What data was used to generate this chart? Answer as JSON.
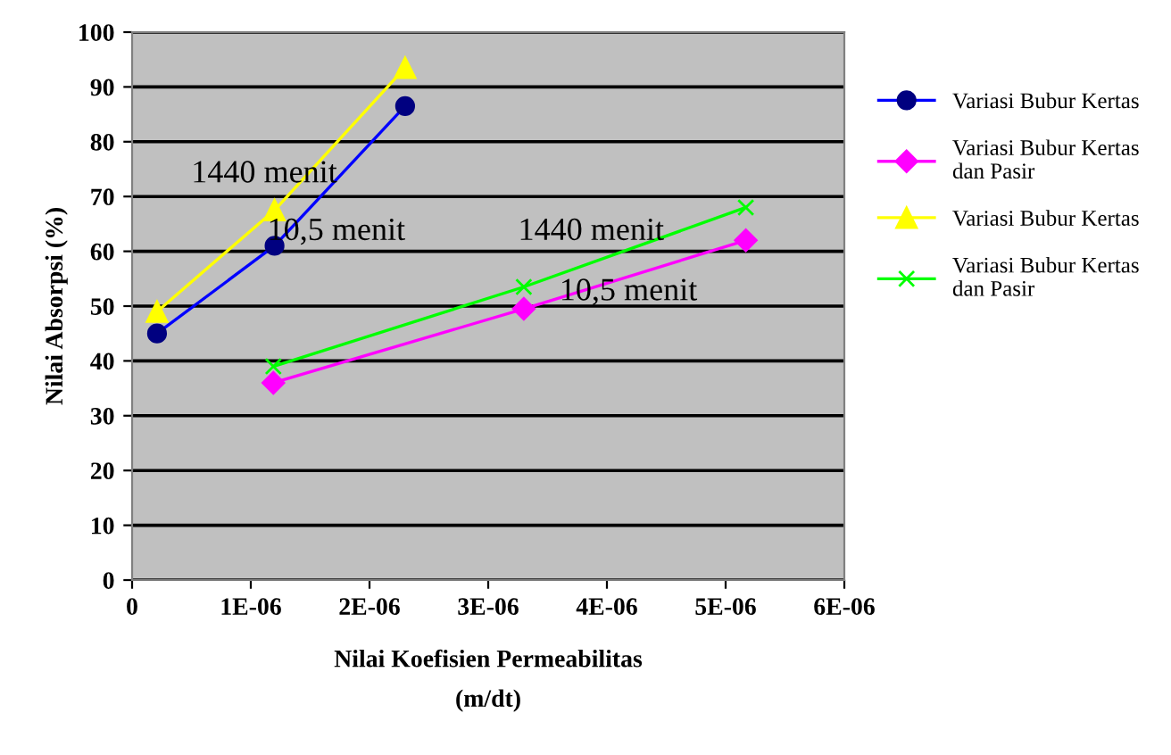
{
  "chart_data": {
    "type": "line",
    "xlabel": "Nilai Koefisien Permeabilitas\n(m/dt)",
    "ylabel": "Nilai Absorpsi (%)",
    "series": [
      {
        "name": "Variasi Bubur Kertas",
        "color": "#0000ff",
        "marker": "circle",
        "x": [
          2.1e-07,
          1.2e-06,
          2.3e-06
        ],
        "values": [
          45,
          61,
          86.5
        ]
      },
      {
        "name": "Variasi Bubur Kertas\ndan Pasir",
        "color": "#ff00ff",
        "marker": "diamond",
        "x": [
          1.19e-06,
          3.3e-06,
          5.17e-06
        ],
        "values": [
          36,
          49.5,
          62
        ]
      },
      {
        "name": "Variasi Bubur Kertas",
        "color": "#ffff00",
        "marker": "triangle",
        "x": [
          2.1e-07,
          1.2e-06,
          2.3e-06
        ],
        "values": [
          49,
          67.5,
          93.5
        ]
      },
      {
        "name": "Variasi Bubur Kertas\ndan Pasir",
        "color": "#00ff00",
        "marker": "cross",
        "x": [
          1.19e-06,
          3.3e-06,
          5.17e-06
        ],
        "values": [
          39,
          53.5,
          68
        ]
      }
    ],
    "annotations": [
      "1440 menit",
      "10,5 menit",
      "1440 menit",
      "10,5 menit"
    ],
    "xlim": [
      0,
      6e-06
    ],
    "xticks": [
      0,
      {
        "value": 1e-06,
        "label": "1E-06"
      },
      {
        "value": 2e-06,
        "label": "2E-06"
      },
      {
        "value": 3e-06,
        "label": "3E-06"
      },
      {
        "value": 4e-06,
        "label": "4E-06"
      },
      {
        "value": 5e-06,
        "label": "5E-06"
      },
      {
        "value": 6e-06,
        "label": "6E-06"
      }
    ],
    "ylim": [
      0,
      100
    ],
    "yticks": [
      0,
      10,
      20,
      30,
      40,
      50,
      60,
      70,
      80,
      90,
      100
    ],
    "grid": "y",
    "legend": "right"
  }
}
